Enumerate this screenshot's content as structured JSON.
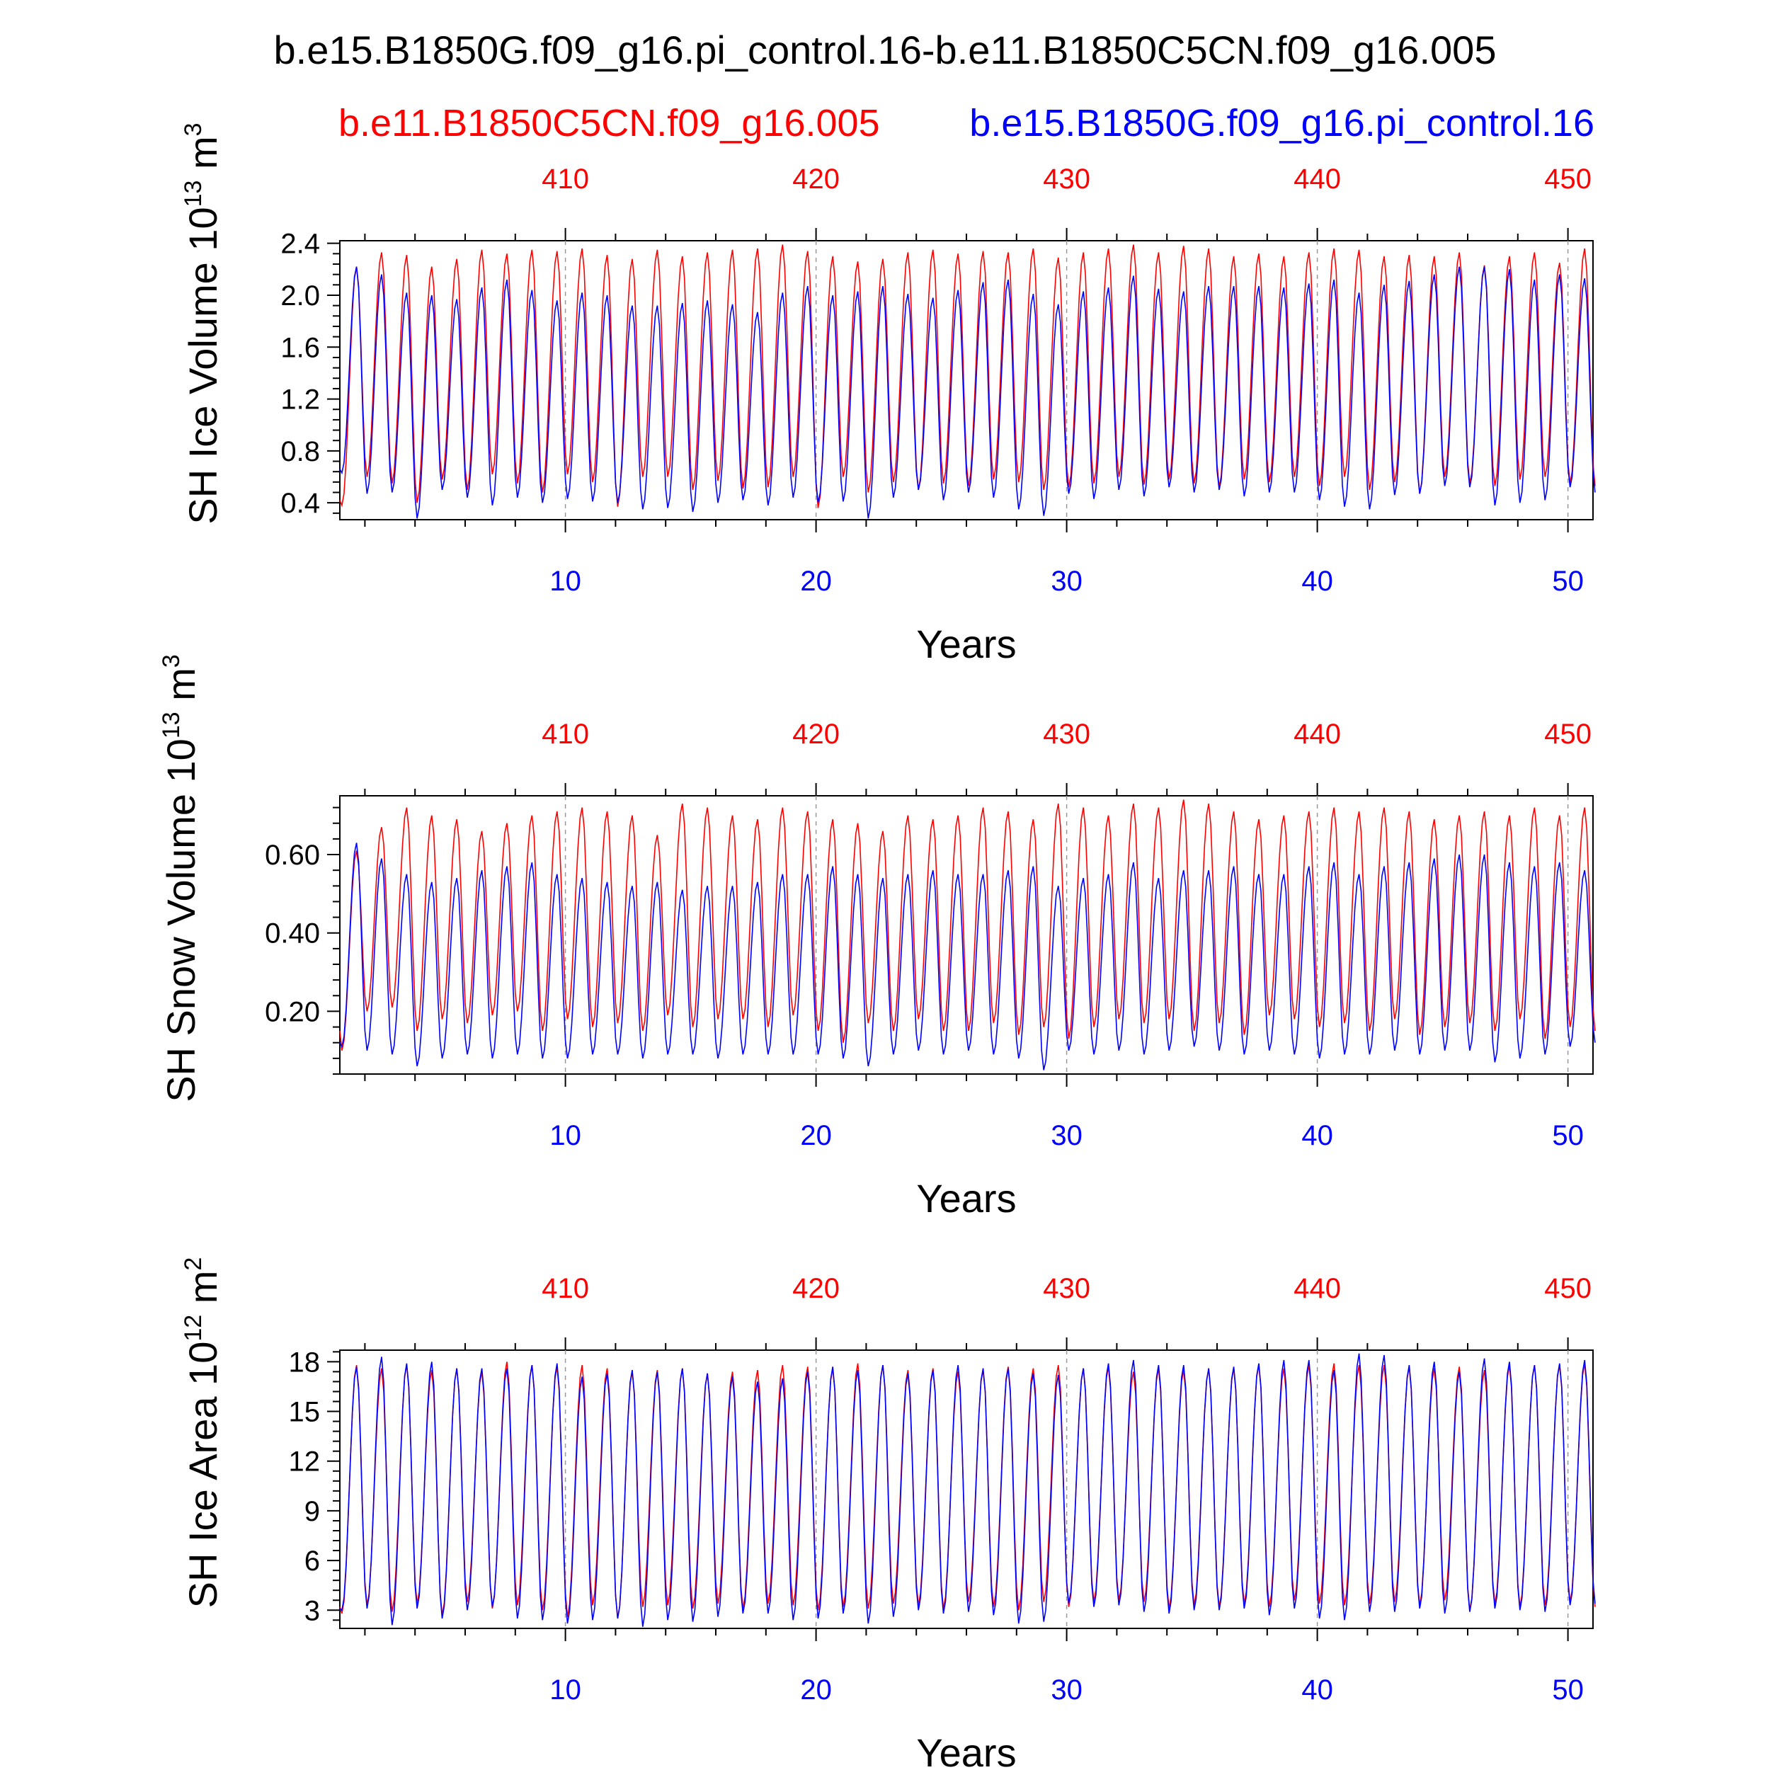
{
  "title": "b.e15.B1850G.f09_g16.pi_control.16-b.e11.B1850C5CN.f09_g16.005",
  "subtitle_left": "b.e11.B1850C5CN.f09_g16.005",
  "subtitle_right": "b.e15.B1850G.f09_g16.pi_control.16",
  "colors": {
    "case_red": "#ff0000",
    "case_blue": "#0000ff",
    "axis": "#000000"
  },
  "chart_data": [
    {
      "type": "line",
      "id": "ice_volume",
      "ylabel": {
        "main": "SH Ice Volume 10",
        "exp": "13",
        "unit": " m",
        "unit_exp": "3"
      },
      "xlabel": "Years",
      "xlim": [
        1,
        51
      ],
      "ylim": [
        0.27,
        2.42
      ],
      "yticks": [
        0.4,
        0.8,
        1.2,
        1.6,
        2.0,
        2.4
      ],
      "ytick_labels": [
        "0.4",
        "0.8",
        "1.2",
        "1.6",
        "2.0",
        "2.4"
      ],
      "x_bottom_ticks": [
        10,
        20,
        30,
        40,
        50
      ],
      "x_bottom_labels": [
        "10",
        "20",
        "30",
        "40",
        "50"
      ],
      "x_top_labels": [
        "410",
        "420",
        "430",
        "440",
        "450"
      ],
      "series": [
        {
          "name": "b.e11.B1850C5CN.f09_g16.005",
          "color": "#ff0000",
          "start_month": 1,
          "start_value": 0.42,
          "maxima": [
            2.22,
            2.33,
            2.31,
            2.22,
            2.28,
            2.35,
            2.32,
            2.35,
            2.34,
            2.36,
            2.31,
            2.28,
            2.35,
            2.3,
            2.33,
            2.35,
            2.36,
            2.39,
            2.34,
            2.3,
            2.26,
            2.28,
            2.33,
            2.35,
            2.32,
            2.34,
            2.33,
            2.36,
            2.29,
            2.33,
            2.36,
            2.39,
            2.33,
            2.38,
            2.36,
            2.3,
            2.32,
            2.3,
            2.33,
            2.36,
            2.35,
            2.3,
            2.31,
            2.3,
            2.33,
            2.23,
            2.3,
            2.33,
            2.25,
            2.36,
            2.25
          ],
          "minima": [
            0.38,
            0.6,
            0.55,
            0.4,
            0.58,
            0.5,
            0.62,
            0.55,
            0.48,
            0.62,
            0.56,
            0.37,
            0.6,
            0.6,
            0.5,
            0.57,
            0.51,
            0.52,
            0.6,
            0.36,
            0.6,
            0.48,
            0.56,
            0.5,
            0.55,
            0.53,
            0.58,
            0.56,
            0.5,
            0.52,
            0.55,
            0.6,
            0.54,
            0.58,
            0.55,
            0.52,
            0.58,
            0.56,
            0.6,
            0.53,
            0.6,
            0.5,
            0.56,
            0.47,
            0.6,
            0.55,
            0.53,
            0.58,
            0.6,
            0.55,
            0.53
          ]
        },
        {
          "name": "b.e15.B1850G.f09_g16.pi_control.16",
          "color": "#0000ff",
          "start_month": 0,
          "start_value": 0.95,
          "maxima": [
            2.22,
            2.16,
            2.02,
            2.0,
            1.97,
            2.06,
            2.12,
            2.04,
            1.96,
            2.02,
            2.0,
            1.92,
            1.92,
            1.94,
            1.96,
            1.93,
            1.87,
            2.02,
            2.07,
            2.0,
            2.03,
            2.07,
            2.01,
            1.98,
            2.04,
            2.1,
            2.12,
            2.01,
            1.93,
            2.03,
            2.06,
            2.15,
            2.05,
            2.03,
            2.07,
            2.07,
            2.07,
            2.06,
            2.09,
            2.12,
            2.02,
            2.08,
            2.11,
            2.16,
            2.22,
            2.22,
            2.2,
            2.12,
            2.16,
            2.13,
            2.07
          ],
          "minima": [
            0.63,
            0.47,
            0.48,
            0.28,
            0.5,
            0.44,
            0.38,
            0.44,
            0.4,
            0.43,
            0.41,
            0.4,
            0.35,
            0.36,
            0.33,
            0.4,
            0.42,
            0.38,
            0.44,
            0.4,
            0.41,
            0.28,
            0.44,
            0.5,
            0.42,
            0.48,
            0.44,
            0.35,
            0.3,
            0.47,
            0.43,
            0.5,
            0.45,
            0.52,
            0.48,
            0.5,
            0.45,
            0.48,
            0.48,
            0.42,
            0.37,
            0.35,
            0.46,
            0.47,
            0.53,
            0.52,
            0.38,
            0.4,
            0.42,
            0.52,
            0.48
          ]
        }
      ]
    },
    {
      "type": "line",
      "id": "snow_volume",
      "ylabel": {
        "main": "SH Snow Volume 10",
        "exp": "13",
        "unit": " m",
        "unit_exp": "3"
      },
      "xlabel": "Years",
      "xlim": [
        1,
        51
      ],
      "ylim": [
        0.04,
        0.75
      ],
      "yticks": [
        0.2,
        0.4,
        0.6
      ],
      "ytick_labels": [
        "0.20",
        "0.40",
        "0.60"
      ],
      "x_bottom_ticks": [
        10,
        20,
        30,
        40,
        50
      ],
      "x_bottom_labels": [
        "10",
        "20",
        "30",
        "40",
        "50"
      ],
      "x_top_labels": [
        "410",
        "420",
        "430",
        "440",
        "450"
      ],
      "series": [
        {
          "name": "b.e11.B1850C5CN.f09_g16.005",
          "color": "#ff0000",
          "start_month": 1,
          "start_value": 0.15,
          "maxima": [
            0.61,
            0.67,
            0.72,
            0.7,
            0.69,
            0.66,
            0.68,
            0.7,
            0.71,
            0.72,
            0.71,
            0.7,
            0.65,
            0.73,
            0.72,
            0.7,
            0.69,
            0.72,
            0.71,
            0.69,
            0.68,
            0.66,
            0.7,
            0.69,
            0.7,
            0.72,
            0.71,
            0.69,
            0.73,
            0.72,
            0.7,
            0.73,
            0.72,
            0.74,
            0.73,
            0.71,
            0.69,
            0.7,
            0.71,
            0.72,
            0.71,
            0.72,
            0.71,
            0.69,
            0.7,
            0.71,
            0.7,
            0.72,
            0.7,
            0.72,
            0.68
          ],
          "minima": [
            0.1,
            0.2,
            0.21,
            0.15,
            0.18,
            0.17,
            0.19,
            0.2,
            0.15,
            0.18,
            0.16,
            0.17,
            0.15,
            0.19,
            0.16,
            0.18,
            0.18,
            0.16,
            0.19,
            0.15,
            0.12,
            0.17,
            0.15,
            0.18,
            0.15,
            0.15,
            0.17,
            0.14,
            0.16,
            0.13,
            0.16,
            0.18,
            0.17,
            0.18,
            0.15,
            0.17,
            0.14,
            0.19,
            0.18,
            0.16,
            0.17,
            0.15,
            0.18,
            0.14,
            0.16,
            0.17,
            0.15,
            0.18,
            0.13,
            0.16,
            0.15
          ]
        },
        {
          "name": "b.e15.B1850G.f09_g16.pi_control.16",
          "color": "#0000ff",
          "start_month": 0,
          "start_value": 0.22,
          "maxima": [
            0.63,
            0.59,
            0.55,
            0.53,
            0.54,
            0.56,
            0.57,
            0.58,
            0.55,
            0.54,
            0.53,
            0.52,
            0.53,
            0.51,
            0.52,
            0.52,
            0.53,
            0.55,
            0.55,
            0.57,
            0.55,
            0.54,
            0.55,
            0.56,
            0.55,
            0.55,
            0.56,
            0.57,
            0.52,
            0.54,
            0.55,
            0.58,
            0.54,
            0.56,
            0.56,
            0.57,
            0.55,
            0.55,
            0.57,
            0.58,
            0.55,
            0.57,
            0.58,
            0.59,
            0.6,
            0.6,
            0.58,
            0.57,
            0.58,
            0.56,
            0.57
          ],
          "minima": [
            0.11,
            0.1,
            0.09,
            0.06,
            0.08,
            0.09,
            0.08,
            0.09,
            0.08,
            0.08,
            0.09,
            0.09,
            0.08,
            0.09,
            0.09,
            0.08,
            0.09,
            0.09,
            0.09,
            0.09,
            0.08,
            0.06,
            0.09,
            0.1,
            0.09,
            0.1,
            0.09,
            0.08,
            0.05,
            0.1,
            0.09,
            0.1,
            0.09,
            0.1,
            0.11,
            0.1,
            0.09,
            0.1,
            0.09,
            0.08,
            0.09,
            0.09,
            0.1,
            0.09,
            0.1,
            0.1,
            0.07,
            0.08,
            0.09,
            0.11,
            0.12
          ]
        }
      ]
    },
    {
      "type": "line",
      "id": "ice_area",
      "ylabel": {
        "main": "SH Ice Area 10",
        "exp": "12",
        "unit": " m",
        "unit_exp": "2"
      },
      "xlabel": "Years",
      "xlim": [
        1,
        51
      ],
      "ylim": [
        1.9,
        18.7
      ],
      "yticks": [
        3,
        6,
        9,
        12,
        15,
        18
      ],
      "ytick_labels": [
        "3",
        "6",
        "9",
        "12",
        "15",
        "18"
      ],
      "x_bottom_ticks": [
        10,
        20,
        30,
        40,
        50
      ],
      "x_bottom_labels": [
        "10",
        "20",
        "30",
        "40",
        "50"
      ],
      "x_top_labels": [
        "410",
        "420",
        "430",
        "440",
        "450"
      ],
      "series": [
        {
          "name": "b.e11.B1850C5CN.f09_g16.005",
          "color": "#ff0000",
          "start_month": 1,
          "start_value": 3.2,
          "maxima": [
            17.8,
            17.6,
            17.8,
            17.5,
            17.6,
            17.4,
            18.0,
            17.8,
            17.7,
            17.8,
            17.6,
            17.4,
            17.5,
            17.6,
            17.3,
            17.4,
            17.5,
            17.8,
            17.7,
            17.6,
            17.9,
            17.8,
            17.5,
            17.6,
            17.4,
            17.5,
            17.7,
            17.6,
            17.8,
            17.6,
            17.7,
            17.4,
            17.6,
            17.5,
            17.6,
            17.6,
            17.8,
            17.6,
            17.8,
            17.9,
            17.8,
            17.8,
            17.7,
            17.6,
            17.7,
            17.5,
            17.8,
            17.8,
            17.8,
            17.9,
            17.6
          ],
          "minima": [
            2.8,
            3.3,
            2.9,
            3.4,
            2.7,
            3.5,
            3.1,
            3.3,
            3.0,
            2.6,
            3.3,
            2.5,
            3.2,
            3.3,
            3.1,
            3.4,
            3.1,
            3.4,
            3.3,
            3.0,
            3.2,
            3.1,
            3.4,
            3.3,
            3.1,
            3.5,
            3.2,
            3.0,
            3.5,
            3.2,
            3.5,
            3.6,
            3.5,
            3.1,
            3.3,
            3.2,
            3.4,
            3.2,
            3.6,
            3.4,
            3.3,
            3.4,
            3.5,
            3.3,
            3.6,
            3.0,
            3.4,
            3.2,
            3.3,
            3.5,
            3.2
          ]
        },
        {
          "name": "b.e15.B1850G.f09_g16.pi_control.16",
          "color": "#0000ff",
          "start_month": 0,
          "start_value": 4.2,
          "maxima": [
            17.7,
            18.3,
            17.9,
            18.0,
            17.6,
            17.6,
            17.6,
            17.8,
            17.9,
            17.1,
            17.3,
            17.5,
            17.4,
            17.6,
            17.3,
            17.1,
            16.8,
            17.0,
            17.4,
            17.7,
            17.5,
            17.8,
            17.3,
            17.5,
            17.8,
            17.6,
            17.6,
            17.3,
            17.2,
            17.6,
            17.9,
            18.1,
            17.8,
            17.8,
            17.6,
            17.7,
            17.9,
            18.1,
            18.1,
            17.5,
            18.5,
            18.4,
            17.8,
            18.0,
            17.4,
            18.2,
            18.0,
            17.8,
            17.9,
            18.1,
            17.4
          ],
          "minima": [
            3.0,
            3.1,
            2.1,
            3.1,
            2.5,
            3.0,
            3.2,
            2.5,
            2.4,
            2.2,
            2.4,
            2.5,
            2.0,
            2.4,
            2.3,
            2.6,
            2.8,
            2.8,
            2.4,
            2.5,
            2.8,
            2.2,
            2.6,
            3.0,
            2.8,
            2.9,
            2.7,
            2.2,
            2.3,
            3.4,
            3.2,
            3.3,
            2.9,
            2.8,
            3.0,
            3.0,
            3.1,
            2.7,
            3.1,
            2.5,
            2.4,
            2.9,
            2.9,
            3.1,
            2.8,
            2.9,
            3.1,
            3.0,
            2.9,
            3.3,
            3.4
          ]
        }
      ]
    }
  ]
}
